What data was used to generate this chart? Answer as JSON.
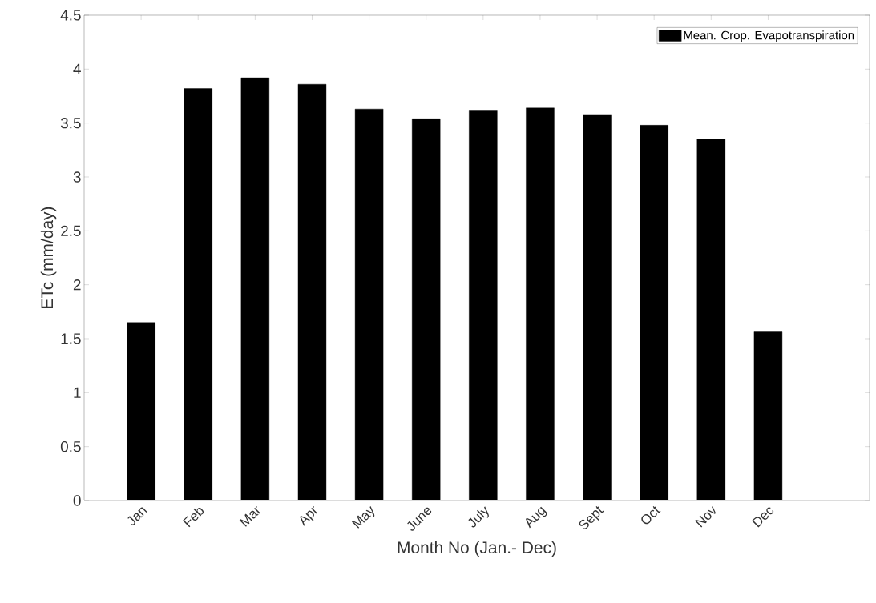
{
  "chart_data": {
    "type": "bar",
    "xlabel": "Month No (Jan.- Dec)",
    "ylabel": "ETc (mm/day)",
    "categories": [
      "Jan",
      "Feb",
      "Mar",
      "Apr",
      "May",
      "June",
      "July",
      "Aug",
      "Sept",
      "Oct",
      "Nov",
      "Dec"
    ],
    "series": [
      {
        "name": "Mean. Crop. Evapotranspiration",
        "color": "#000000",
        "values": [
          1.65,
          3.82,
          3.92,
          3.86,
          3.63,
          3.54,
          3.62,
          3.64,
          3.58,
          3.48,
          3.35,
          1.57
        ]
      }
    ],
    "ylim": [
      0,
      4.5
    ],
    "yticks": [
      0,
      0.5,
      1,
      1.5,
      2,
      2.5,
      3,
      3.5,
      4,
      4.5
    ],
    "legend": "top right",
    "grid": false
  }
}
